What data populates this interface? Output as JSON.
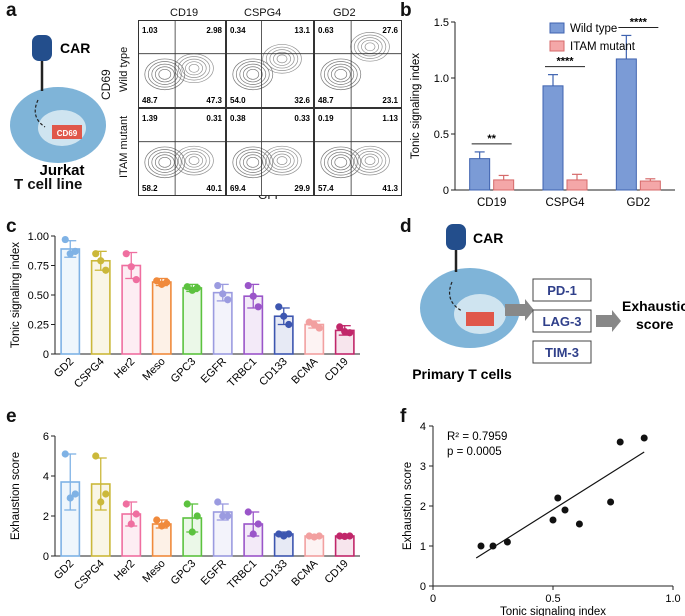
{
  "panels": {
    "a": "a",
    "b": "b",
    "c": "c",
    "d": "d",
    "e": "e",
    "f": "f"
  },
  "schematic_a": {
    "car_label": "CAR",
    "marker": "CD69",
    "cell_line": "Jurkat",
    "cell_line2": "T cell line"
  },
  "flow": {
    "columns": [
      "CD19",
      "CSPG4",
      "GD2"
    ],
    "rows": [
      "Wild type",
      "ITAM mutant"
    ],
    "ylabel": "CD69",
    "xlabel": "GFP",
    "quadrants": [
      [
        {
          "ul": "1.03",
          "ur": "2.98",
          "ll": "48.7",
          "lr": "47.3"
        },
        {
          "ul": "0.34",
          "ur": "13.1",
          "ll": "54.0",
          "lr": "32.6"
        },
        {
          "ul": "0.63",
          "ur": "27.6",
          "ll": "48.7",
          "lr": "23.1"
        }
      ],
      [
        {
          "ul": "1.39",
          "ur": "0.31",
          "ll": "58.2",
          "lr": "40.1"
        },
        {
          "ul": "0.38",
          "ur": "0.33",
          "ll": "69.4",
          "lr": "29.9"
        },
        {
          "ul": "0.19",
          "ur": "1.13",
          "ll": "57.4",
          "lr": "41.3"
        }
      ]
    ]
  },
  "schematic_d": {
    "car_label": "CAR",
    "markers": [
      "PD-1",
      "LAG-3",
      "TIM-3"
    ],
    "result_line1": "Exhaustion",
    "result_line2": "score",
    "cell_label": "Primary T cells"
  },
  "colors": {
    "wild_type": "#7b9bd6",
    "itam_mutant": "#f4a7a8",
    "GD2": "#7fb2e5",
    "CSPG4": "#cbb83a",
    "Her2": "#ef6fa0",
    "Meso": "#f08a3c",
    "GPC3": "#5cc23f",
    "EGFR": "#9b9be0",
    "TRBC1": "#9a55c9",
    "CD133": "#3d56b0",
    "BCMA": "#f2a0a0",
    "CD19": "#c1276a"
  },
  "chart_data": [
    {
      "id": "b",
      "type": "bar",
      "ylabel": "Tonic signaling index",
      "categories": [
        "CD19",
        "CSPG4",
        "GD2"
      ],
      "ylim": [
        0,
        1.5
      ],
      "yticks": [
        "0",
        "0.5",
        "1.0",
        "1.5"
      ],
      "series": [
        {
          "name": "Wild type",
          "values": [
            0.28,
            0.93,
            1.17
          ],
          "errors": [
            0.06,
            0.1,
            0.21
          ]
        },
        {
          "name": "ITAM mutant",
          "values": [
            0.09,
            0.09,
            0.08
          ],
          "errors": [
            0.04,
            0.05,
            0.02
          ]
        }
      ],
      "significance": [
        "**",
        "****",
        "****"
      ],
      "legend": "top-right"
    },
    {
      "id": "c",
      "type": "bar",
      "ylabel": "Tonic signaling index",
      "categories": [
        "GD2",
        "CSPG4",
        "Her2",
        "Meso",
        "GPC3",
        "EGFR",
        "TRBC1",
        "CD133",
        "BCMA",
        "CD19"
      ],
      "values": [
        0.89,
        0.79,
        0.75,
        0.61,
        0.56,
        0.52,
        0.49,
        0.32,
        0.25,
        0.2
      ],
      "errors": [
        0.07,
        0.08,
        0.11,
        0.03,
        0.03,
        0.07,
        0.1,
        0.07,
        0.03,
        0.04
      ],
      "points": [
        [
          0.97,
          0.85,
          0.87
        ],
        [
          0.85,
          0.79,
          0.71
        ],
        [
          0.85,
          0.74,
          0.63
        ],
        [
          0.62,
          0.59,
          0.61
        ],
        [
          0.57,
          0.54,
          0.56
        ],
        [
          0.58,
          0.51,
          0.46
        ],
        [
          0.58,
          0.49,
          0.4
        ],
        [
          0.4,
          0.32,
          0.25
        ],
        [
          0.27,
          0.25,
          0.22
        ],
        [
          0.23,
          0.19,
          0.18
        ]
      ],
      "ylim": [
        0,
        1.0
      ],
      "yticks": [
        "0",
        "0.25",
        "0.50",
        "0.75",
        "1.00"
      ]
    },
    {
      "id": "e",
      "type": "bar",
      "ylabel": "Exhaustion score",
      "categories": [
        "GD2",
        "CSPG4",
        "Her2",
        "Meso",
        "GPC3",
        "EGFR",
        "TRBC1",
        "CD133",
        "BCMA",
        "CD19"
      ],
      "values": [
        3.7,
        3.6,
        2.1,
        1.6,
        1.9,
        2.2,
        1.6,
        1.1,
        1.0,
        1.0
      ],
      "errors": [
        1.4,
        1.3,
        0.6,
        0.2,
        0.7,
        0.4,
        0.6,
        0.1,
        0.05,
        0.03
      ],
      "points": [
        [
          5.1,
          2.9,
          3.1
        ],
        [
          5.0,
          2.7,
          3.1
        ],
        [
          2.6,
          1.6,
          2.1
        ],
        [
          1.8,
          1.5,
          1.6
        ],
        [
          2.6,
          1.2,
          2.0
        ],
        [
          2.7,
          2.0,
          2.0
        ],
        [
          2.2,
          1.1,
          1.6
        ],
        [
          1.1,
          1.0,
          1.1
        ],
        [
          1.0,
          0.95,
          1.0
        ],
        [
          1.0,
          0.98,
          1.0
        ]
      ],
      "ylim": [
        0,
        6
      ],
      "yticks": [
        "0",
        "2",
        "4",
        "6"
      ]
    },
    {
      "id": "f",
      "type": "scatter",
      "xlabel": "Tonic signaling index",
      "ylabel": "Exhaustion score",
      "annotation_r2": "R² = 0.7959",
      "annotation_p": "p = 0.0005",
      "x": [
        0.2,
        0.25,
        0.31,
        0.5,
        0.52,
        0.55,
        0.61,
        0.74,
        0.78,
        0.88
      ],
      "y": [
        1.0,
        1.0,
        1.1,
        1.65,
        2.2,
        1.9,
        1.55,
        2.1,
        3.6,
        3.7
      ],
      "fit": {
        "x": [
          0.18,
          0.88
        ],
        "y": [
          0.7,
          3.35
        ]
      },
      "xlim": [
        0,
        1.0
      ],
      "ylim": [
        0,
        4
      ],
      "xticks": [
        "0",
        "0.5",
        "1.0"
      ],
      "yticks": [
        "0",
        "1",
        "2",
        "3",
        "4"
      ]
    }
  ]
}
